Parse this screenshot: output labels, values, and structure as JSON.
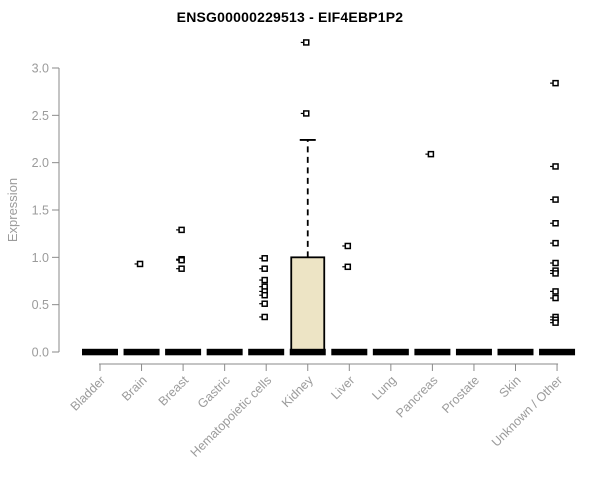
{
  "title": "ENSG00000229513 - EIF4EBP1P2",
  "chart_data": {
    "type": "boxplot",
    "title": "ENSG00000229513 - EIF4EBP1P2",
    "xlabel": "",
    "ylabel": "Expression",
    "ylim": [
      0,
      3.3
    ],
    "yticks": [
      "0.0",
      "0.5",
      "1.0",
      "1.5",
      "2.0",
      "2.5",
      "3.0"
    ],
    "grid": false,
    "legend": false,
    "categories": [
      "Bladder",
      "Brain",
      "Breast",
      "Gastric",
      "Hematopoietic cells",
      "Kidney",
      "Liver",
      "Lung",
      "Pancreas",
      "Prostate",
      "Skin",
      "Unknown / Other"
    ],
    "series": [
      {
        "category": "Bladder",
        "whisker_low": 0,
        "q1": 0,
        "median": 0,
        "q3": 0,
        "whisker_high": 0,
        "outliers": []
      },
      {
        "category": "Brain",
        "whisker_low": 0,
        "q1": 0,
        "median": 0,
        "q3": 0,
        "whisker_high": 0,
        "outliers": [
          0.93
        ]
      },
      {
        "category": "Breast",
        "whisker_low": 0,
        "q1": 0,
        "median": 0,
        "q3": 0,
        "whisker_high": 0,
        "outliers": [
          1.29,
          0.98,
          0.97,
          0.88
        ]
      },
      {
        "category": "Gastric",
        "whisker_low": 0,
        "q1": 0,
        "median": 0,
        "q3": 0,
        "whisker_high": 0,
        "outliers": []
      },
      {
        "category": "Hematopoietic cells",
        "whisker_low": 0,
        "q1": 0,
        "median": 0,
        "q3": 0,
        "whisker_high": 0,
        "outliers": [
          0.99,
          0.88,
          0.76,
          0.69,
          0.64,
          0.6,
          0.51,
          0.37
        ]
      },
      {
        "category": "Kidney",
        "whisker_low": 0,
        "q1": 0,
        "median": 0,
        "q3": 1.0,
        "whisker_high": 2.24,
        "outliers": [
          2.52,
          3.27
        ]
      },
      {
        "category": "Liver",
        "whisker_low": 0,
        "q1": 0,
        "median": 0,
        "q3": 0,
        "whisker_high": 0,
        "outliers": [
          1.12,
          0.9
        ]
      },
      {
        "category": "Lung",
        "whisker_low": 0,
        "q1": 0,
        "median": 0,
        "q3": 0,
        "whisker_high": 0,
        "outliers": []
      },
      {
        "category": "Pancreas",
        "whisker_low": 0,
        "q1": 0,
        "median": 0,
        "q3": 0,
        "whisker_high": 0,
        "outliers": [
          2.09
        ]
      },
      {
        "category": "Prostate",
        "whisker_low": 0,
        "q1": 0,
        "median": 0,
        "q3": 0,
        "whisker_high": 0,
        "outliers": []
      },
      {
        "category": "Skin",
        "whisker_low": 0,
        "q1": 0,
        "median": 0,
        "q3": 0,
        "whisker_high": 0,
        "outliers": []
      },
      {
        "category": "Unknown / Other",
        "whisker_low": 0,
        "q1": 0,
        "median": 0,
        "q3": 0,
        "whisker_high": 0,
        "outliers": [
          2.84,
          1.96,
          1.61,
          1.36,
          1.15,
          0.94,
          0.86,
          0.83,
          0.64,
          0.57,
          0.37,
          0.34,
          0.31
        ]
      }
    ],
    "colors": {
      "box_fill": "#ede4c5",
      "box_stroke": "#000000",
      "median": "#000000",
      "point_stroke": "#000000",
      "point_fill": "#ffffff",
      "axis": "#8a8a8a",
      "tick_label": "#9b9b9b",
      "title": "#000000",
      "background": "#ffffff"
    }
  }
}
